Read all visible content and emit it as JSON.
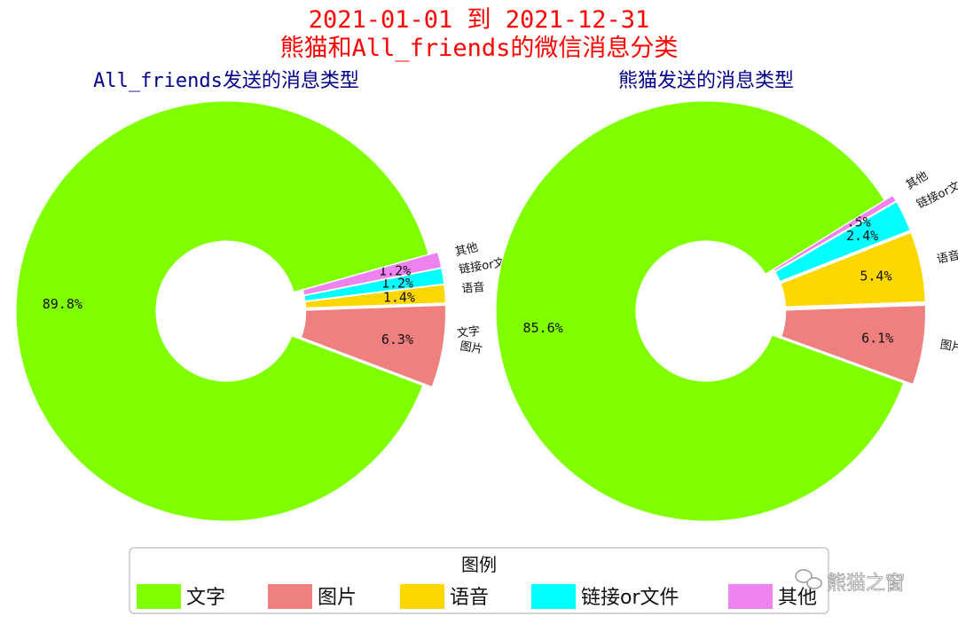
{
  "title": {
    "line1": "2021-01-01 到 2021-12-31",
    "line2": "熊猫和All_friends的微信消息分类"
  },
  "colors": {
    "title": "#ff0000",
    "subtitle": "#00008b",
    "文字": "#7fff00",
    "图片": "#f08080",
    "语音": "#ffd700",
    "链接or文件": "#00ffff",
    "其他": "#ee82ee"
  },
  "legend": {
    "title": "图例",
    "items": [
      "文字",
      "图片",
      "语音",
      "链接or文件",
      "其他"
    ],
    "placement": "bottom-center"
  },
  "watermark": {
    "icon": "wechat-icon",
    "text": "熊猫之窗"
  },
  "chart_data": [
    {
      "type": "pie",
      "style": "donut",
      "title": "All_friends发送的消息类型",
      "categories": [
        "文字",
        "图片",
        "语音",
        "链接or文件",
        "其他"
      ],
      "values": [
        89.8,
        6.3,
        1.4,
        1.2,
        1.2
      ],
      "labels": [
        "89.8%",
        "6.3%",
        "1.4%",
        "1.2%",
        "1.2%"
      ],
      "exploded": [
        "图片",
        "语音",
        "链接or文件",
        "其他"
      ]
    },
    {
      "type": "pie",
      "style": "donut",
      "title": "熊猫发送的消息类型",
      "categories": [
        "文字",
        "图片",
        "语音",
        "链接or文件",
        "其他"
      ],
      "values": [
        85.6,
        6.1,
        5.4,
        2.4,
        0.5
      ],
      "labels": [
        "85.6%",
        "6.1%",
        "5.4%",
        "2.4%",
        "0.5%"
      ],
      "exploded": [
        "图片",
        "语音",
        "链接or文件",
        "其他"
      ]
    }
  ]
}
